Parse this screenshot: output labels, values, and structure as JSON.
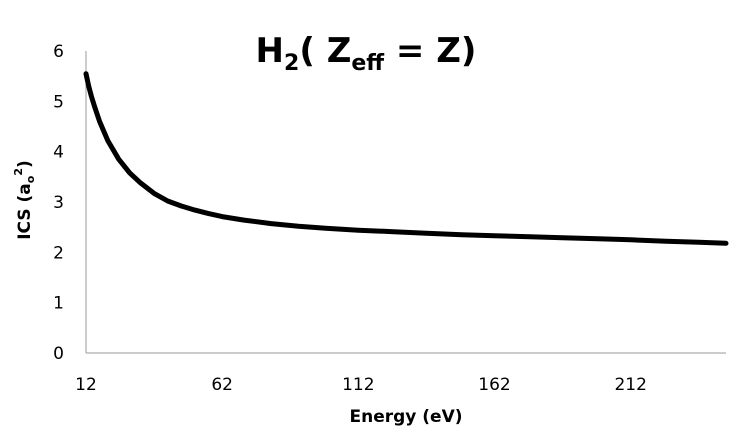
{
  "chart_data": {
    "type": "line",
    "title": {
      "main": "H",
      "main_sub": "2",
      "paren_open": "( Z",
      "z_sub": "eff",
      "rest": " = Z)"
    },
    "xlabel": "Energy (eV)",
    "ylabel": {
      "text": "ICS (a",
      "sub": "o",
      "sup": "2",
      "close": ")"
    },
    "xlim": [
      12,
      247
    ],
    "ylim": [
      0,
      6
    ],
    "xticks": [
      12,
      62,
      112,
      162,
      212
    ],
    "yticks": [
      0,
      1,
      2,
      3,
      4,
      5,
      6
    ],
    "grid": false,
    "legend": "none",
    "line_color": "#000000",
    "series": [
      {
        "x": [
          12,
          13,
          14,
          15,
          17,
          20,
          24,
          28,
          32,
          37,
          42,
          47,
          52,
          57,
          62,
          70,
          80,
          90,
          100,
          112,
          125,
          137,
          150,
          162,
          175,
          187,
          200,
          212,
          225,
          237,
          247
        ],
        "values": [
          5.55,
          5.3,
          5.1,
          4.92,
          4.6,
          4.22,
          3.85,
          3.58,
          3.38,
          3.17,
          3.02,
          2.92,
          2.84,
          2.77,
          2.71,
          2.64,
          2.57,
          2.52,
          2.48,
          2.44,
          2.41,
          2.38,
          2.35,
          2.33,
          2.31,
          2.29,
          2.27,
          2.25,
          2.22,
          2.2,
          2.18
        ]
      }
    ]
  }
}
